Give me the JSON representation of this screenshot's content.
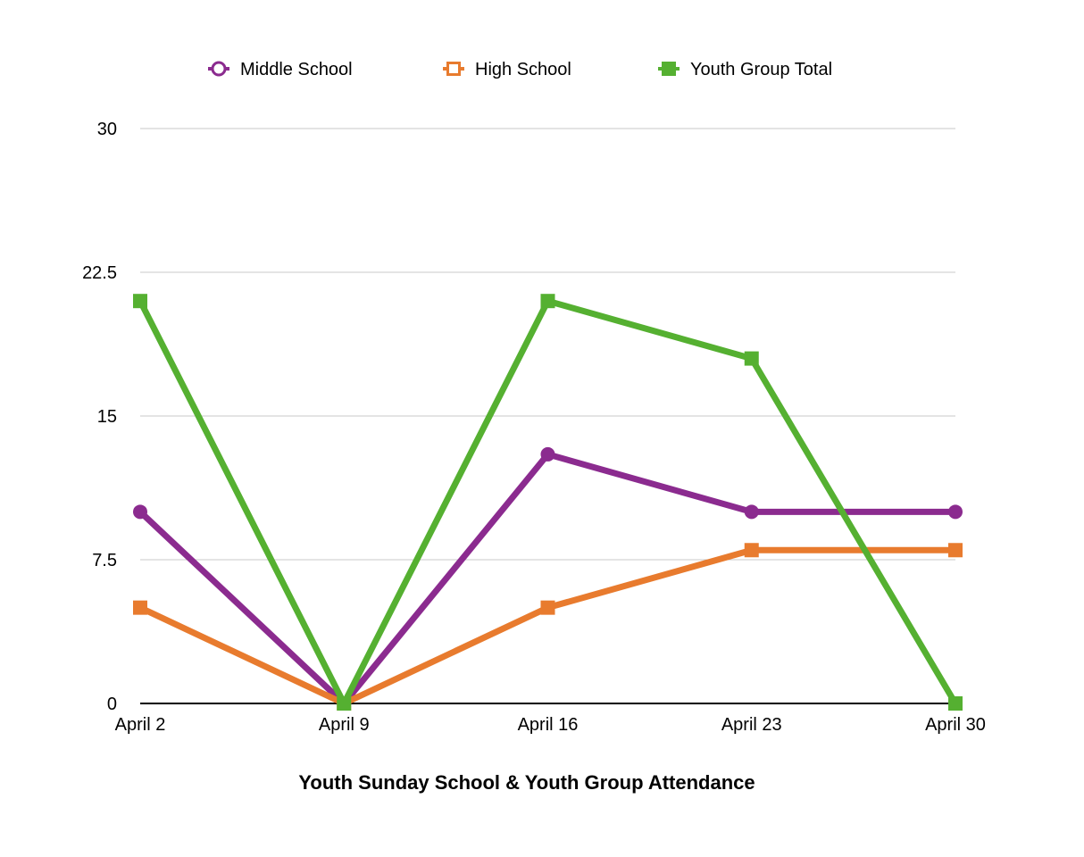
{
  "chart_data": {
    "type": "line",
    "title": "Youth Sunday School & Youth Group Attendance",
    "categories": [
      "April 2",
      "April 9",
      "April 16",
      "April 23",
      "April 30"
    ],
    "ylim": [
      0,
      30
    ],
    "yticks": [
      "0",
      "7.5",
      "15",
      "22.5",
      "30"
    ],
    "grid": true,
    "legend_position": "top",
    "series": [
      {
        "name": "Middle School",
        "color": "#8B2B8F",
        "marker": "circle",
        "values": [
          10,
          0,
          13,
          10,
          10
        ]
      },
      {
        "name": "High School",
        "color": "#E87B2E",
        "marker": "square",
        "values": [
          5,
          0,
          5,
          8,
          8
        ]
      },
      {
        "name": "Youth Group Total",
        "color": "#55B031",
        "marker": "square",
        "values": [
          21,
          0,
          21,
          18,
          0
        ]
      }
    ]
  }
}
